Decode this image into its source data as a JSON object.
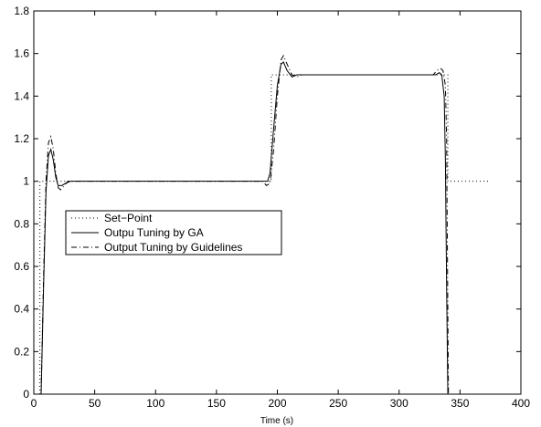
{
  "chart_data": {
    "type": "line",
    "title": "",
    "xlabel": "Time (s)",
    "ylabel": "",
    "xlim": [
      0,
      400
    ],
    "ylim": [
      0,
      1.8
    ],
    "xticks": [
      0,
      50,
      100,
      150,
      200,
      250,
      300,
      350,
      400
    ],
    "xtick_labels": [
      "0",
      "50",
      "100",
      "150",
      "200",
      "250",
      "300",
      "350",
      "400"
    ],
    "yticks": [
      0,
      0.2,
      0.4,
      0.6,
      0.8,
      1,
      1.2,
      1.4,
      1.6,
      1.8
    ],
    "ytick_labels": [
      "0",
      "0.2",
      "0.4",
      "0.6",
      "0.8",
      "1",
      "1.2",
      "1.4",
      "1.6",
      "1.8"
    ],
    "grid": false,
    "legend_position": "middle-left",
    "series": [
      {
        "name": "Set−Point",
        "style": "dotted",
        "color": "#000000",
        "points": [
          [
            5,
            0
          ],
          [
            5,
            1
          ],
          [
            195,
            1
          ],
          [
            195,
            1.5
          ],
          [
            340,
            1.5
          ],
          [
            340,
            1
          ],
          [
            373,
            1
          ]
        ]
      },
      {
        "name": "Outpu Tuning by GA",
        "style": "solid",
        "color": "#000000",
        "points": [
          [
            6,
            0
          ],
          [
            8,
            0.5
          ],
          [
            10,
            0.95
          ],
          [
            12,
            1.12
          ],
          [
            14,
            1.15
          ],
          [
            16,
            1.1
          ],
          [
            18,
            1.02
          ],
          [
            20,
            0.98
          ],
          [
            23,
            0.98
          ],
          [
            26,
            0.99
          ],
          [
            30,
            1.0
          ],
          [
            35,
            1.0
          ],
          [
            192,
            1.0
          ],
          [
            194,
            1.04
          ],
          [
            197,
            1.25
          ],
          [
            200,
            1.45
          ],
          [
            203,
            1.55
          ],
          [
            205,
            1.56
          ],
          [
            208,
            1.52
          ],
          [
            212,
            1.49
          ],
          [
            216,
            1.5
          ],
          [
            220,
            1.5
          ],
          [
            330,
            1.5
          ],
          [
            333,
            1.51
          ],
          [
            335,
            1.5
          ],
          [
            337,
            1.4
          ],
          [
            338,
            1.1
          ],
          [
            339,
            0.5
          ],
          [
            340,
            0
          ]
        ]
      },
      {
        "name": "Output Tuning by Guidelines",
        "style": "dashdot",
        "color": "#000000",
        "points": [
          [
            6,
            0
          ],
          [
            8,
            0.55
          ],
          [
            10,
            1.0
          ],
          [
            12,
            1.18
          ],
          [
            14,
            1.21
          ],
          [
            16,
            1.15
          ],
          [
            18,
            1.04
          ],
          [
            20,
            0.97
          ],
          [
            22,
            0.96
          ],
          [
            25,
            0.98
          ],
          [
            28,
            1.0
          ],
          [
            35,
            1.0
          ],
          [
            188,
            1.0
          ],
          [
            191,
            0.98
          ],
          [
            194,
            0.99
          ],
          [
            197,
            1.15
          ],
          [
            200,
            1.4
          ],
          [
            203,
            1.57
          ],
          [
            205,
            1.59
          ],
          [
            208,
            1.55
          ],
          [
            212,
            1.5
          ],
          [
            216,
            1.49
          ],
          [
            220,
            1.5
          ],
          [
            328,
            1.5
          ],
          [
            331,
            1.52
          ],
          [
            334,
            1.53
          ],
          [
            336,
            1.52
          ],
          [
            338,
            1.45
          ],
          [
            339,
            1.2
          ],
          [
            340,
            0.4
          ],
          [
            340.5,
            0
          ]
        ]
      }
    ]
  }
}
